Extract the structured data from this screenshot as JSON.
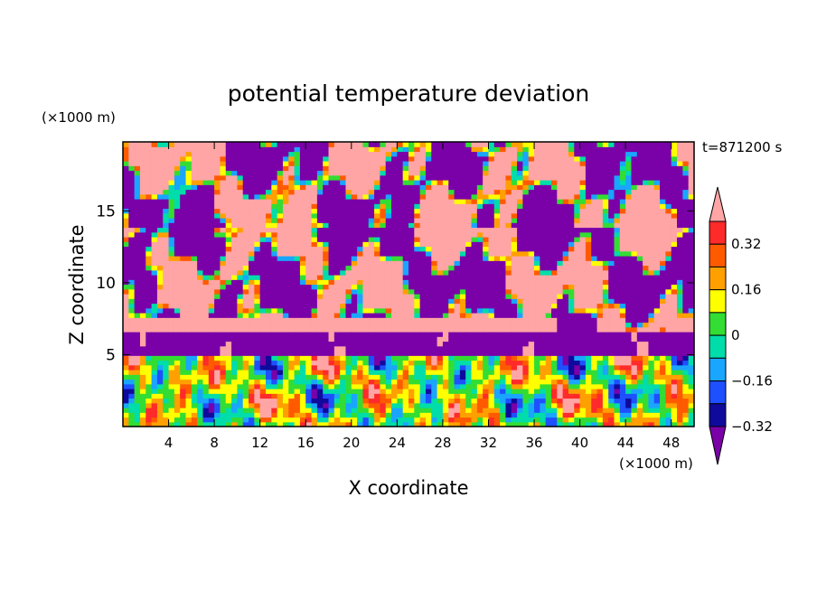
{
  "chart_data": {
    "type": "heatmap",
    "title": "potential temperature deviation",
    "xlabel": "X coordinate",
    "ylabel": "Z coordinate",
    "x_unit": "(×1000 m)",
    "y_unit": "(×1000 m)",
    "time_label": "t=871200 s",
    "xlim": [
      0,
      50
    ],
    "ylim": [
      0,
      19.8
    ],
    "x_ticks": [
      4,
      8,
      12,
      16,
      20,
      24,
      28,
      32,
      36,
      40,
      44,
      48
    ],
    "y_ticks": [
      5,
      10,
      15
    ],
    "colorbar": {
      "levels": [
        -0.4,
        -0.32,
        -0.24,
        -0.16,
        -0.08,
        0,
        0.08,
        0.16,
        0.24,
        0.32,
        0.4
      ],
      "tick_labels": [
        "0.32",
        "0.16",
        "0",
        "-0.16",
        "-0.32"
      ],
      "tick_values": [
        0.32,
        0.16,
        0,
        -0.16,
        -0.32
      ],
      "colors": [
        "#7a00a8",
        "#0f0a9c",
        "#1e50ff",
        "#1aa5ff",
        "#00ddaa",
        "#33dd33",
        "#ffff00",
        "#ffa000",
        "#ff5a00",
        "#ff2a2a",
        "#ffa5a5"
      ],
      "extend": "both"
    },
    "layers": [
      {
        "name": "bottom",
        "z_range": [
          0,
          5
        ],
        "pattern": "turbulent mixed",
        "value_range": [
          -0.4,
          0.4
        ]
      },
      {
        "name": "cold band",
        "z_range": [
          5,
          6.8
        ],
        "value": -0.4
      },
      {
        "name": "warm band",
        "z_range": [
          6.6,
          7.6
        ],
        "x_range": [
          0,
          38
        ],
        "value": 0.34
      },
      {
        "name": "mid layer",
        "z_range": [
          7.6,
          14
        ],
        "pattern": "warm/cold patches",
        "value_range": [
          -0.4,
          0.4
        ]
      },
      {
        "name": "upper layer",
        "z_range": [
          14,
          19.8
        ],
        "pattern": "warm/cold patches",
        "value_range": [
          -0.4,
          0.4
        ]
      }
    ]
  }
}
